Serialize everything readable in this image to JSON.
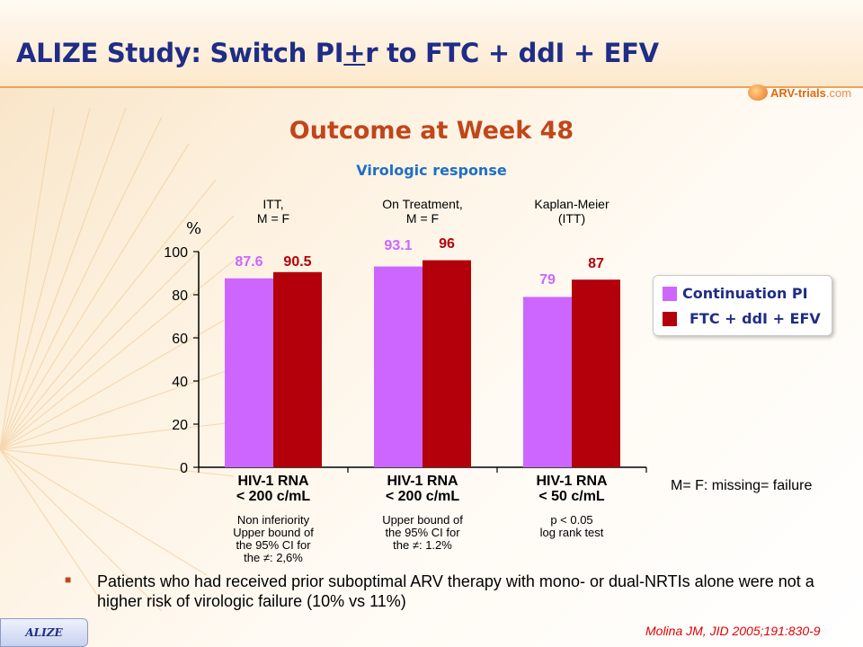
{
  "slide": {
    "title_prefix": "ALIZE Study: Switch PI",
    "title_plus": "+",
    "title_suffix": "r to FTC + ddI + EFV",
    "logo_main": "ARV-trials",
    "logo_suffix": ".com",
    "subtitle": "Outcome at Week 48",
    "subsubtitle": "Virologic response",
    "missing_note": "M= F: missing= failure",
    "bullet_text": "Patients who had received prior suboptimal ARV therapy with mono- or dual-NRTIs alone were not a higher risk of virologic failure (10% vs 11%)",
    "tag": "ALIZE",
    "citation": "Molina JM, JID 2005;191:830-9"
  },
  "colors": {
    "title": "#1f2d86",
    "subtitle": "#c0461b",
    "subsubtitle": "#1f6fc4",
    "continuation": "#cc66ff",
    "ftc": "#b3000a",
    "continuation_label": "#cc66ff",
    "ftc_label": "#b3000a"
  },
  "chart_data": {
    "type": "bar",
    "y_unit": "%",
    "ylim": [
      0,
      100
    ],
    "yticks": [
      0,
      20,
      40,
      60,
      80,
      100
    ],
    "grid": false,
    "legend_position": "right",
    "categories": [
      {
        "header": [
          "ITT,",
          "M = F"
        ],
        "label": [
          "HIV-1 RNA",
          "< 200 c/mL"
        ],
        "note": [
          "Non inferiority",
          "Upper bound of",
          "the 95% CI for",
          "the ≠: 2,6%"
        ]
      },
      {
        "header": [
          "On Treatment,",
          "M = F"
        ],
        "label": [
          "HIV-1 RNA",
          "< 200 c/mL"
        ],
        "note": [
          "Upper bound of",
          "the 95% CI for",
          "the ≠: 1.2%"
        ]
      },
      {
        "header": [
          "Kaplan-Meier",
          "(ITT)"
        ],
        "label": [
          "HIV-1 RNA",
          "< 50 c/mL"
        ],
        "note": [
          "p < 0.05",
          "log rank test"
        ]
      }
    ],
    "series": [
      {
        "name": "Continuation PI",
        "values": [
          87.6,
          93.1,
          79
        ],
        "labels": [
          "87.6",
          "93.1",
          "79"
        ]
      },
      {
        "name": "FTC + ddI + EFV",
        "values": [
          90.5,
          96,
          87
        ],
        "labels": [
          "90.5",
          "96",
          "87"
        ]
      }
    ]
  }
}
